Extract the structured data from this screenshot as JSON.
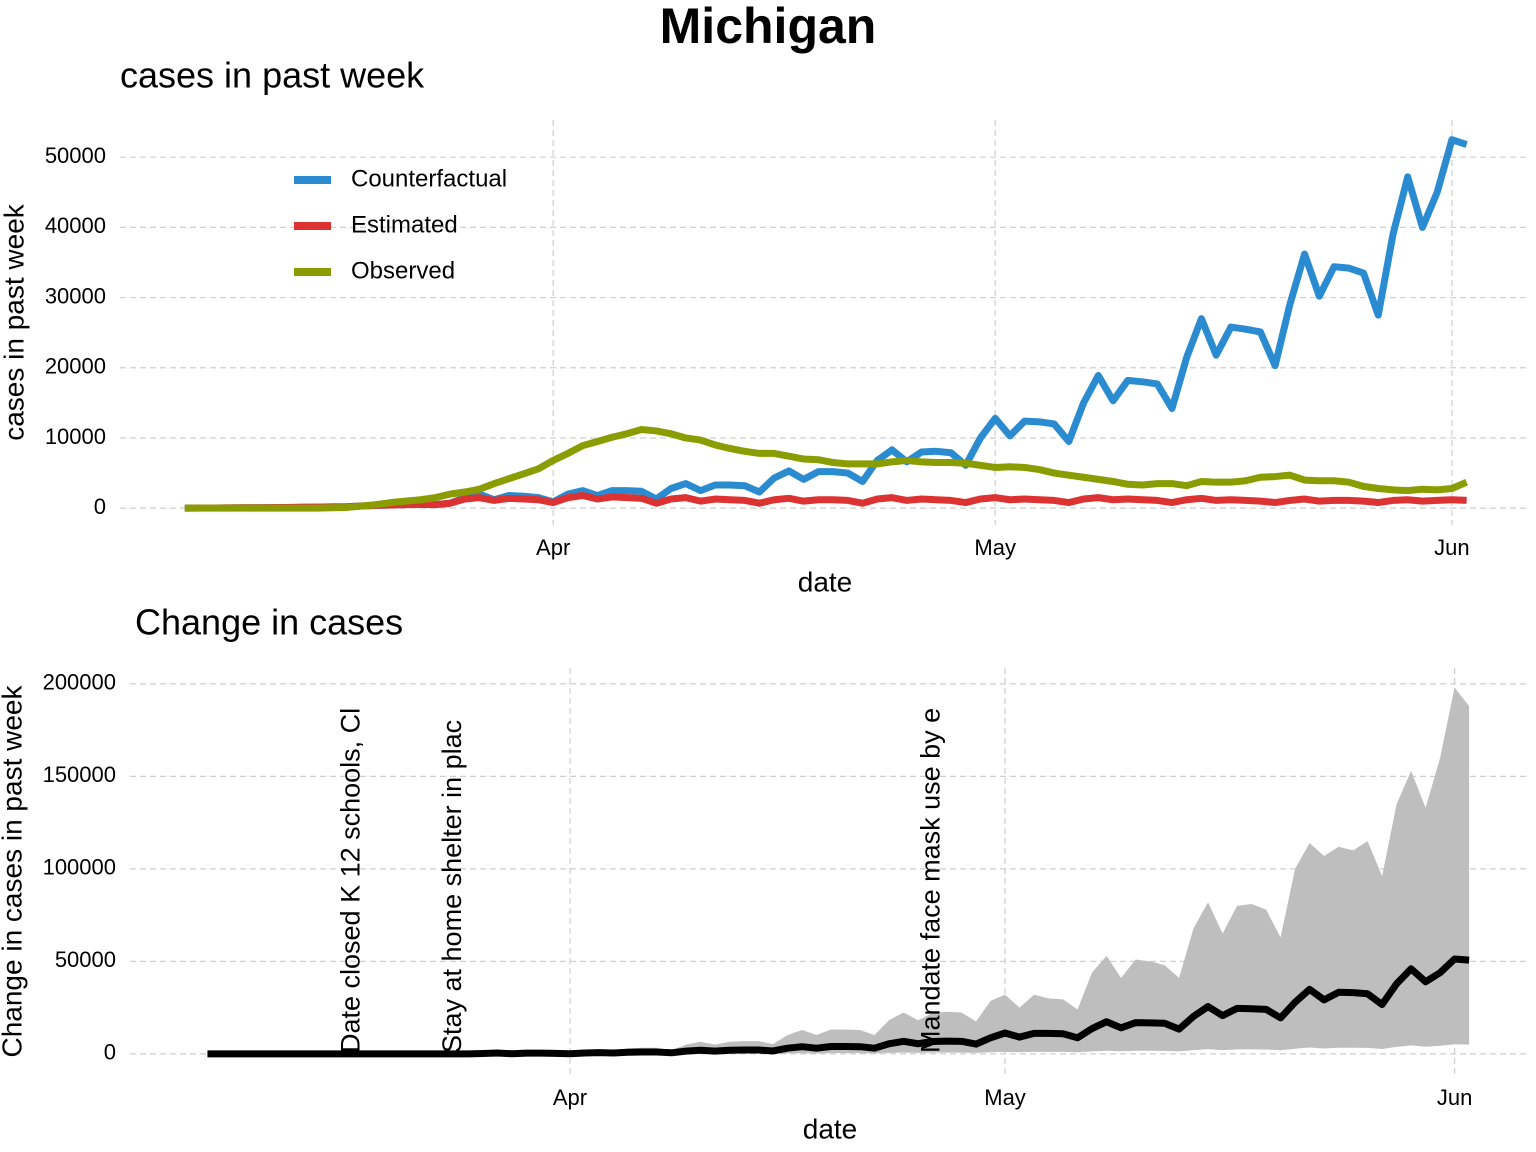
{
  "title": "Michigan",
  "chart_data": [
    {
      "type": "line",
      "title": "cases in past week",
      "ylabel": "cases in past week",
      "xlabel": "date",
      "x": [
        6,
        7,
        8,
        9,
        10,
        11,
        12,
        13,
        14,
        15,
        16,
        17,
        18,
        19,
        20,
        21,
        22,
        23,
        24,
        25,
        26,
        27,
        28,
        29,
        30,
        31,
        32,
        33,
        34,
        35,
        36,
        37,
        38,
        39,
        40,
        41,
        42,
        43,
        44,
        45,
        46,
        47,
        48,
        49,
        50,
        51,
        52,
        53,
        54,
        55,
        56,
        57,
        58,
        59,
        60,
        61,
        62,
        63,
        64,
        65,
        66,
        67,
        68,
        69,
        70,
        71,
        72,
        73,
        74,
        75,
        76,
        77,
        78,
        79,
        80,
        81,
        82,
        83,
        84,
        85,
        86,
        87,
        88,
        89,
        90,
        91,
        92,
        93
      ],
      "series": [
        {
          "name": "Counterfactual",
          "color": "#2b8bd1",
          "values": [
            10,
            20,
            30,
            40,
            50,
            60,
            80,
            100,
            120,
            150,
            180,
            200,
            300,
            400,
            450,
            500,
            550,
            500,
            700,
            1500,
            2000,
            1200,
            1800,
            1700,
            1500,
            900,
            2000,
            2500,
            1800,
            2500,
            2500,
            2400,
            1300,
            2800,
            3500,
            2500,
            3300,
            3300,
            3200,
            2300,
            4300,
            5300,
            4100,
            5200,
            5200,
            5000,
            3800,
            6800,
            8300,
            6600,
            8000,
            8100,
            7900,
            6100,
            10000,
            12800,
            10300,
            12400,
            12300,
            12000,
            9500,
            15000,
            18900,
            15300,
            18200,
            18000,
            17700,
            14200,
            21500,
            27000,
            21800,
            25800,
            25500,
            25100,
            20300,
            29000,
            36200,
            30200,
            34400,
            34200,
            33500,
            27500,
            39000,
            47200,
            40000,
            45000,
            52500,
            51800
          ]
        },
        {
          "name": "Estimated",
          "color": "#dc3232",
          "values": [
            10,
            20,
            30,
            40,
            50,
            60,
            80,
            100,
            120,
            150,
            180,
            200,
            300,
            400,
            450,
            500,
            550,
            500,
            700,
            1300,
            1500,
            1100,
            1400,
            1300,
            1200,
            800,
            1500,
            1800,
            1300,
            1600,
            1500,
            1400,
            700,
            1300,
            1500,
            1000,
            1300,
            1200,
            1100,
            700,
            1200,
            1400,
            1000,
            1200,
            1200,
            1100,
            700,
            1300,
            1500,
            1100,
            1300,
            1200,
            1100,
            800,
            1300,
            1500,
            1200,
            1300,
            1200,
            1100,
            800,
            1300,
            1500,
            1200,
            1300,
            1200,
            1100,
            800,
            1200,
            1400,
            1100,
            1200,
            1100,
            1000,
            800,
            1100,
            1300,
            1000,
            1100,
            1100,
            1000,
            800,
            1100,
            1200,
            1000,
            1100,
            1200,
            1100
          ]
        },
        {
          "name": "Observed",
          "color": "#8a9d00",
          "values": [
            0,
            0,
            0,
            0,
            0,
            0,
            0,
            0,
            0,
            0,
            50,
            100,
            300,
            500,
            800,
            1000,
            1200,
            1500,
            2000,
            2300,
            2700,
            3500,
            4200,
            4900,
            5600,
            6800,
            7800,
            8900,
            9500,
            10100,
            10600,
            11200,
            11000,
            10600,
            10000,
            9700,
            9000,
            8500,
            8100,
            7800,
            7800,
            7400,
            7000,
            6900,
            6500,
            6300,
            6300,
            6300,
            6600,
            6800,
            6600,
            6500,
            6500,
            6400,
            6100,
            5800,
            5900,
            5800,
            5500,
            5000,
            4700,
            4400,
            4100,
            3800,
            3400,
            3300,
            3500,
            3500,
            3200,
            3800,
            3700,
            3700,
            3900,
            4400,
            4500,
            4700,
            4000,
            3900,
            3900,
            3700,
            3100,
            2800,
            2600,
            2500,
            2700,
            2600,
            2800,
            3700
          ]
        }
      ],
      "xlim": [
        1.6,
        97.3
      ],
      "xticks": [
        {
          "value": 31,
          "label": "Apr"
        },
        {
          "value": 61,
          "label": "May"
        },
        {
          "value": 92,
          "label": "Jun"
        }
      ],
      "ylim": [
        -2400,
        55300
      ],
      "yticks": [
        0,
        10000,
        20000,
        30000,
        40000,
        50000
      ],
      "grid": true,
      "legend": "upper left"
    },
    {
      "type": "band-line",
      "title": "Change in cases",
      "ylabel": "Change in cases in past week",
      "xlabel": "date",
      "x": [
        6,
        7,
        8,
        9,
        10,
        11,
        12,
        13,
        14,
        15,
        16,
        17,
        18,
        19,
        20,
        21,
        22,
        23,
        24,
        25,
        26,
        27,
        28,
        29,
        30,
        31,
        32,
        33,
        34,
        35,
        36,
        37,
        38,
        39,
        40,
        41,
        42,
        43,
        44,
        45,
        46,
        47,
        48,
        49,
        50,
        51,
        52,
        53,
        54,
        55,
        56,
        57,
        58,
        59,
        60,
        61,
        62,
        63,
        64,
        65,
        66,
        67,
        68,
        69,
        70,
        71,
        72,
        73,
        74,
        75,
        76,
        77,
        78,
        79,
        80,
        81,
        82,
        83,
        84,
        85,
        86,
        87,
        88,
        89,
        90,
        91,
        92,
        93
      ],
      "color": "#000000",
      "values": [
        0,
        0,
        0,
        0,
        0,
        0,
        0,
        0,
        0,
        0,
        0,
        0,
        0,
        0,
        0,
        0,
        0,
        0,
        0,
        200,
        500,
        100,
        400,
        400,
        300,
        100,
        500,
        700,
        500,
        900,
        1000,
        1000,
        600,
        1500,
        2000,
        1500,
        2000,
        2100,
        2100,
        1600,
        3100,
        3900,
        3100,
        4000,
        4000,
        3900,
        3100,
        5500,
        6800,
        5500,
        6700,
        6900,
        6800,
        5300,
        8700,
        11300,
        9100,
        11100,
        11100,
        10900,
        8700,
        13700,
        17400,
        14100,
        16900,
        16800,
        16600,
        13400,
        20300,
        25600,
        20700,
        24600,
        24400,
        24100,
        19500,
        27900,
        34900,
        29200,
        33300,
        33100,
        32500,
        26700,
        37900,
        46000,
        39000,
        43900,
        51300,
        50700
      ],
      "band": {
        "color": "#bebebe",
        "upper": [
          0,
          0,
          0,
          0,
          0,
          0,
          0,
          0,
          0,
          0,
          0,
          0,
          0,
          0,
          0,
          0,
          0,
          0,
          0,
          700,
          1700,
          300,
          1300,
          1300,
          1000,
          300,
          1700,
          2300,
          1700,
          3000,
          3300,
          3300,
          2000,
          5000,
          6600,
          5000,
          6600,
          6900,
          6900,
          5300,
          10200,
          12900,
          10200,
          13200,
          13200,
          12900,
          10200,
          18200,
          22400,
          18200,
          22100,
          22800,
          22400,
          17500,
          28700,
          32000,
          25000,
          32000,
          30000,
          29500,
          24000,
          44000,
          53000,
          41000,
          51000,
          50000,
          48000,
          41000,
          68000,
          82000,
          65000,
          80000,
          81000,
          78000,
          63000,
          100000,
          114000,
          107000,
          112000,
          110000,
          115000,
          96000,
          135000,
          153000,
          133000,
          160000,
          198000,
          188000
        ],
        "lower": [
          0,
          0,
          0,
          0,
          0,
          0,
          0,
          0,
          0,
          0,
          0,
          0,
          0,
          0,
          0,
          0,
          0,
          0,
          0,
          20,
          50,
          10,
          40,
          40,
          30,
          10,
          50,
          70,
          50,
          90,
          100,
          100,
          60,
          150,
          200,
          150,
          200,
          210,
          210,
          160,
          310,
          390,
          310,
          400,
          400,
          390,
          310,
          550,
          680,
          550,
          670,
          690,
          680,
          530,
          870,
          1130,
          910,
          1110,
          1110,
          1090,
          870,
          1370,
          1740,
          1410,
          1690,
          1680,
          1660,
          1340,
          2030,
          2560,
          2070,
          2460,
          2440,
          2410,
          1950,
          2790,
          3490,
          2920,
          3330,
          3310,
          3250,
          2670,
          3790,
          4600,
          3900,
          4390,
          5130,
          5070
        ]
      },
      "annotations": [
        {
          "x": 16,
          "text": "Date closed K 12 schools, Cl"
        },
        {
          "x": 23,
          "text": "Stay at home  shelter in plac"
        },
        {
          "x": 56,
          "text": "Mandate face mask use by e"
        }
      ],
      "xlim": [
        0.66,
        97.2
      ],
      "xticks": [
        {
          "value": 31,
          "label": "Apr"
        },
        {
          "value": 61,
          "label": "May"
        },
        {
          "value": 92,
          "label": "Jun"
        }
      ],
      "ylim": [
        -11400,
        208600
      ],
      "yticks": [
        0,
        50000,
        100000,
        150000,
        200000
      ],
      "grid": true
    }
  ]
}
